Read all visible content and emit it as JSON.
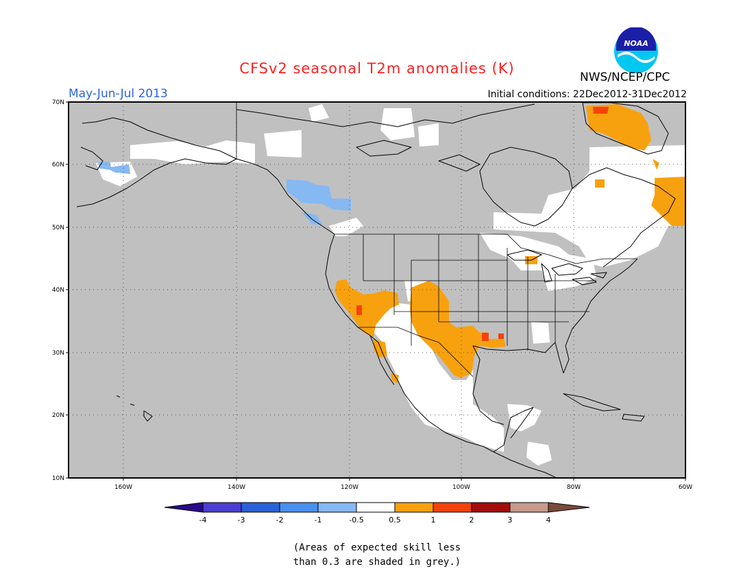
{
  "title": "CFSv2 seasonal T2m anomalies (K)",
  "period": "May-Jun-Jul 2013",
  "initial_conditions": "Initial conditions: 22Dec2012-31Dec2012",
  "agency": "NWS/NCEP/CPC",
  "logo_text": "NOAA",
  "lat_labels": [
    "70N",
    "60N",
    "50N",
    "40N",
    "30N",
    "20N",
    "10N"
  ],
  "lon_labels": [
    "160W",
    "140W",
    "120W",
    "100W",
    "80W",
    "60W"
  ],
  "colorbar": {
    "ticks": [
      "-4",
      "-3",
      "-2",
      "-1",
      "-0.5",
      "0.5",
      "1",
      "2",
      "3",
      "4"
    ],
    "colors": [
      "#2a0a8c",
      "#4a3fcf",
      "#2a62d6",
      "#4a90ec",
      "#86b8f2",
      "#ffffff",
      "#f8a10e",
      "#f5420c",
      "#a30d0a",
      "#c69a8c",
      "#7a4b3c"
    ]
  },
  "note_lines": [
    "(Areas of expected skill less",
    "than 0.3 are shaded in grey.)"
  ],
  "colors": {
    "no_skill_grey": "#c0c0c0",
    "near_normal": "#ffffff",
    "warm_05_1": "#f8a10e",
    "warm_1_2": "#f5420c",
    "warm_2_3": "#a30d0a",
    "cool_05_1": "#86b8f2"
  }
}
